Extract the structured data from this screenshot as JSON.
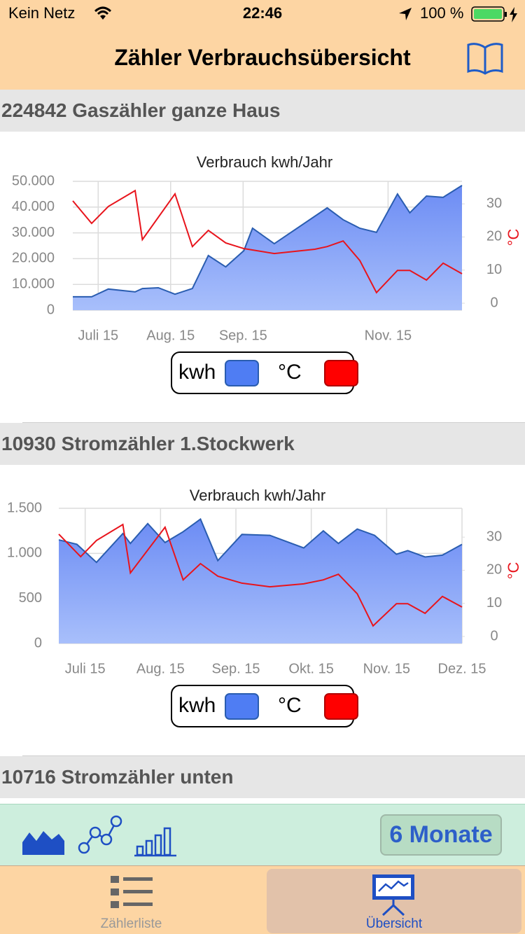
{
  "status_bar": {
    "carrier": "Kein Netz",
    "time": "22:46",
    "battery": "100 %"
  },
  "header": {
    "title": "Zähler Verbrauchsübersicht"
  },
  "sections": [
    {
      "title": "224842 Gaszähler ganze Haus"
    },
    {
      "title": "10930 Stromzähler 1.Stockwerk"
    },
    {
      "title": "10716 Stromzähler unten"
    }
  ],
  "chart_data": [
    {
      "type": "area",
      "title": "Verbrauch kwh/Jahr",
      "y2label": "°C",
      "grid": true,
      "legend": "bottom",
      "xlim": [
        6.65,
        12.02
      ],
      "xticks": [
        {
          "value": 7,
          "label": "Juli 15"
        },
        {
          "value": 8,
          "label": "Aug. 15"
        },
        {
          "value": 9,
          "label": "Sep. 15"
        },
        {
          "value": 11,
          "label": "Nov. 15"
        }
      ],
      "ylim": [
        0,
        50000
      ],
      "yticks": [
        0,
        {
          "value": 10000,
          "label": "10.000"
        },
        {
          "value": 20000,
          "label": "20.000"
        },
        {
          "value": 30000,
          "label": "30.000"
        },
        {
          "value": 40000,
          "label": "40.000"
        },
        {
          "value": 50000,
          "label": "50.000"
        }
      ],
      "y2lim": [
        -2.1,
        36.8
      ],
      "y2ticks": [
        0,
        10,
        20,
        30
      ],
      "series": [
        {
          "name": "kwh",
          "type": "area",
          "color": "#4f7df3",
          "x": [
            6.65,
            6.91,
            7.14,
            7.51,
            7.61,
            7.83,
            8.06,
            8.3,
            8.52,
            8.76,
            9.01,
            9.13,
            9.43,
            10.16,
            10.38,
            10.61,
            10.84,
            11.13,
            11.3,
            11.53,
            11.76,
            12.02
          ],
          "values": [
            5200,
            5200,
            8200,
            7100,
            8400,
            8700,
            6200,
            8400,
            21200,
            16800,
            23100,
            31800,
            25800,
            39700,
            35100,
            31800,
            30200,
            45100,
            37800,
            44300,
            43800,
            48400
          ]
        },
        {
          "name": "°C",
          "type": "line",
          "axis": "y2",
          "color": "#ff0000",
          "x": [
            6.65,
            6.91,
            7.14,
            7.51,
            7.61,
            8.06,
            8.3,
            8.52,
            8.76,
            9.01,
            9.43,
            9.99,
            10.16,
            10.38,
            10.61,
            10.84,
            11.13,
            11.3,
            11.53,
            11.76,
            12.02
          ],
          "values": [
            30.9,
            24.1,
            29.2,
            34.0,
            19.2,
            33.0,
            17.1,
            22.0,
            18.2,
            16.5,
            15.0,
            16.3,
            17.1,
            18.8,
            12.9,
            3.2,
            9.9,
            9.9,
            7.0,
            12.1,
            8.9
          ]
        }
      ]
    },
    {
      "type": "area",
      "title": "Verbrauch kwh/Jahr",
      "y2label": "°C",
      "grid": true,
      "legend": "bottom",
      "xlim": [
        6.65,
        12.0
      ],
      "xticks": [
        {
          "value": 7,
          "label": "Juli 15"
        },
        {
          "value": 8,
          "label": "Aug. 15"
        },
        {
          "value": 9,
          "label": "Sep. 15"
        },
        {
          "value": 10,
          "label": "Okt. 15"
        },
        {
          "value": 11,
          "label": "Nov. 15"
        },
        {
          "value": 12,
          "label": "Dez. 15"
        }
      ],
      "ylim": [
        0,
        1500
      ],
      "yticks": [
        0,
        500,
        {
          "value": 1000,
          "label": "1.000"
        },
        {
          "value": 1500,
          "label": "1.500"
        }
      ],
      "y2lim": [
        -2.1,
        38.7
      ],
      "y2ticks": [
        0,
        10,
        20,
        30
      ],
      "series": [
        {
          "name": "kwh",
          "type": "area",
          "color": "#4f7df3",
          "x": [
            6.65,
            6.89,
            7.15,
            7.5,
            7.6,
            7.83,
            8.06,
            8.3,
            8.53,
            8.76,
            9.08,
            9.45,
            9.9,
            10.16,
            10.36,
            10.61,
            10.84,
            11.13,
            11.28,
            11.51,
            11.74,
            12.0
          ],
          "values": [
            1150,
            1100,
            900,
            1220,
            1110,
            1330,
            1120,
            1240,
            1380,
            920,
            1210,
            1200,
            1060,
            1250,
            1110,
            1270,
            1200,
            990,
            1030,
            960,
            980,
            1100
          ]
        },
        {
          "name": "°C",
          "type": "line",
          "axis": "y2",
          "color": "#ff0000",
          "x": [
            6.65,
            6.94,
            7.15,
            7.5,
            7.6,
            8.06,
            8.3,
            8.53,
            8.76,
            9.08,
            9.45,
            9.9,
            10.16,
            10.36,
            10.61,
            10.82,
            11.13,
            11.28,
            11.51,
            11.74,
            12.0
          ],
          "values": [
            30.9,
            24.1,
            29.0,
            33.8,
            19.2,
            33.0,
            17.1,
            22.0,
            18.2,
            16.1,
            15.0,
            15.9,
            17.1,
            18.8,
            12.9,
            3.2,
            9.9,
            9.9,
            7.0,
            12.1,
            8.9
          ]
        }
      ]
    }
  ],
  "toolbar": {
    "range_button": "6 Monate"
  },
  "tab_bar": {
    "tabs": [
      "Zählerliste",
      "Übersicht"
    ]
  }
}
